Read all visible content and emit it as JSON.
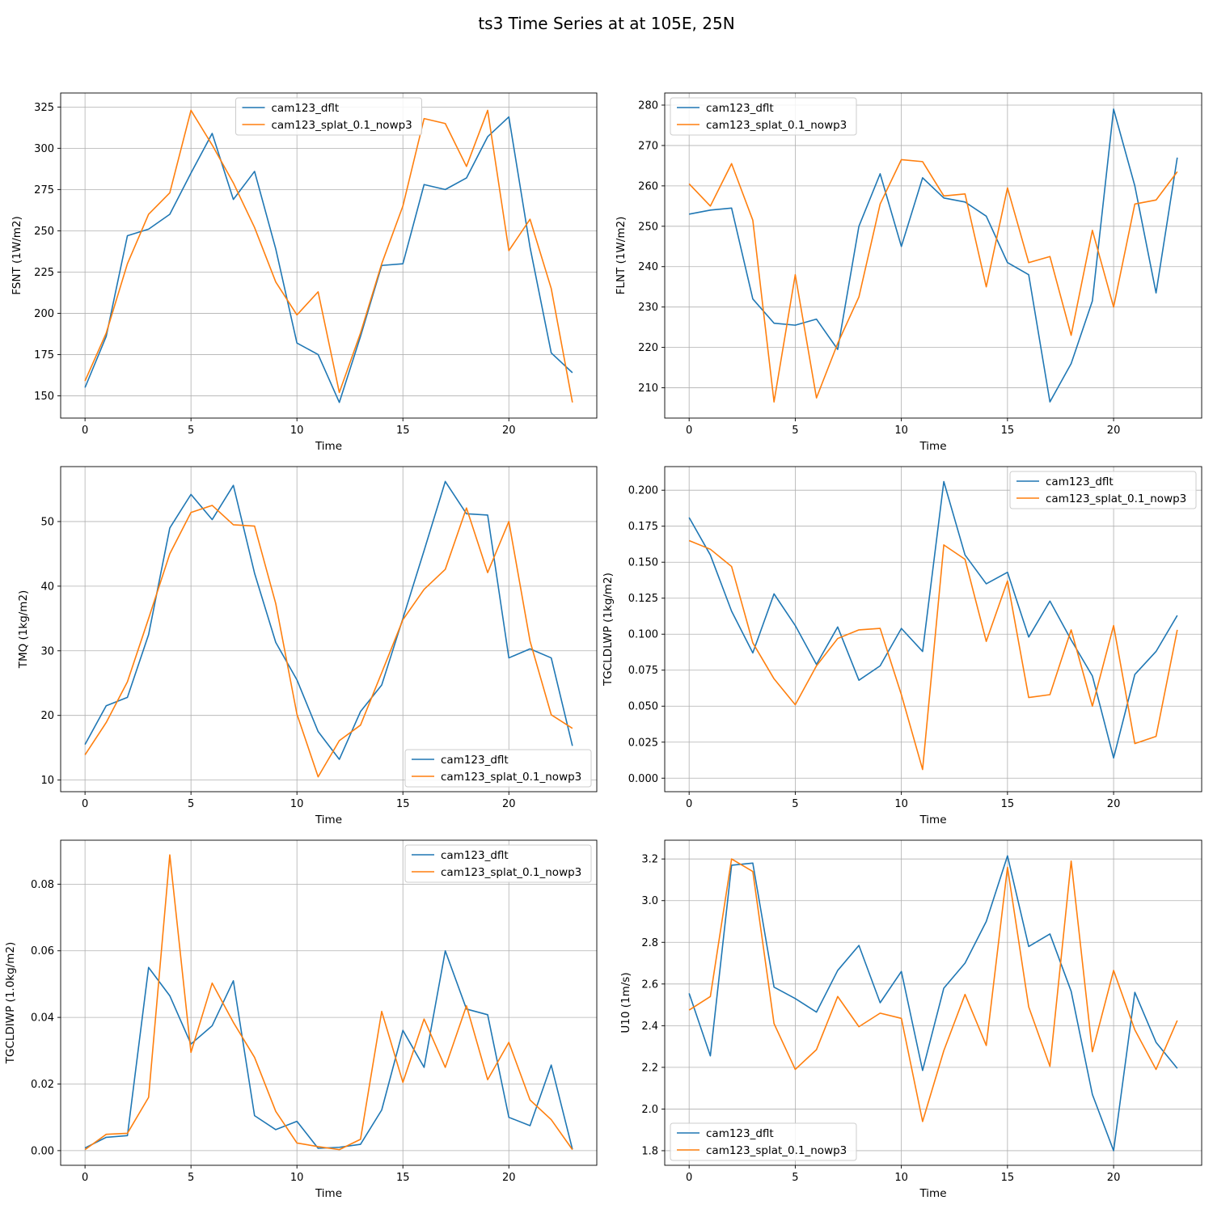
{
  "figure": {
    "title": "ts3 Time Series at at 105E, 25N"
  },
  "colors": {
    "series_0": "#1f77b4",
    "series_1": "#ff7f0e",
    "grid": "#b0b0b0"
  },
  "chart_data": [
    {
      "type": "line",
      "xlabel": "Time",
      "ylabel": "FSNT (1W/m2)",
      "xlim": [
        -1.15,
        24.15
      ],
      "ylim": [
        136.5,
        333.5
      ],
      "xticks": [
        0,
        5,
        10,
        15,
        20
      ],
      "yticks": [
        150,
        175,
        200,
        225,
        250,
        275,
        300,
        325
      ],
      "ytick_labels": [
        "150",
        "175",
        "200",
        "225",
        "250",
        "275",
        "300",
        "325"
      ],
      "legend_loc": "upper center",
      "grid": true,
      "x": [
        0,
        1,
        2,
        3,
        4,
        5,
        6,
        7,
        8,
        9,
        10,
        11,
        12,
        13,
        14,
        15,
        16,
        17,
        18,
        19,
        20,
        21,
        22,
        23
      ],
      "series": [
        {
          "name": "cam123_dflt",
          "values": [
            155,
            186,
            247,
            251,
            260,
            285,
            309,
            269,
            286,
            239,
            182,
            175,
            146,
            186,
            229,
            230,
            278,
            275,
            282,
            307,
            319,
            240,
            176,
            164
          ]
        },
        {
          "name": "cam123_splat_0.1_nowp3",
          "values": [
            159,
            188,
            230,
            260,
            273,
            323,
            302,
            279,
            252,
            219,
            199,
            213,
            152,
            188,
            230,
            265,
            318,
            315,
            289,
            323,
            238,
            257,
            215,
            146
          ]
        }
      ]
    },
    {
      "type": "line",
      "xlabel": "Time",
      "ylabel": "FLNT (1W/m2)",
      "xlim": [
        -1.15,
        24.15
      ],
      "ylim": [
        202.5,
        283.0
      ],
      "xticks": [
        0,
        5,
        10,
        15,
        20
      ],
      "yticks": [
        210,
        220,
        230,
        240,
        250,
        260,
        270,
        280
      ],
      "ytick_labels": [
        "210",
        "220",
        "230",
        "240",
        "250",
        "260",
        "270",
        "280"
      ],
      "legend_loc": "upper left",
      "grid": true,
      "x": [
        0,
        1,
        2,
        3,
        4,
        5,
        6,
        7,
        8,
        9,
        10,
        11,
        12,
        13,
        14,
        15,
        16,
        17,
        18,
        19,
        20,
        21,
        22,
        23
      ],
      "series": [
        {
          "name": "cam123_dflt",
          "values": [
            253,
            254,
            254.5,
            232,
            226,
            225.5,
            227,
            219.5,
            250,
            263,
            245,
            262,
            257,
            256,
            252.5,
            241,
            238,
            206.5,
            216,
            231.5,
            279,
            260,
            233.5,
            267
          ]
        },
        {
          "name": "cam123_splat_0.1_nowp3",
          "values": [
            260.5,
            255,
            265.5,
            251.5,
            206.5,
            238,
            207.5,
            221,
            232.5,
            255.5,
            266.5,
            266,
            257.5,
            258,
            235,
            259.5,
            241,
            242.5,
            223,
            249,
            230,
            255.5,
            256.5,
            263.5
          ]
        }
      ]
    },
    {
      "type": "line",
      "xlabel": "Time",
      "ylabel": "TMQ (1kg/m2)",
      "xlim": [
        -1.15,
        24.15
      ],
      "ylim": [
        8.2,
        58.5
      ],
      "xticks": [
        0,
        5,
        10,
        15,
        20
      ],
      "yticks": [
        10,
        20,
        30,
        40,
        50
      ],
      "ytick_labels": [
        "10",
        "20",
        "30",
        "40",
        "50"
      ],
      "legend_loc": "lower right",
      "grid": true,
      "x": [
        0,
        1,
        2,
        3,
        4,
        5,
        6,
        7,
        8,
        9,
        10,
        11,
        12,
        13,
        14,
        15,
        16,
        17,
        18,
        19,
        20,
        21,
        22,
        23
      ],
      "series": [
        {
          "name": "cam123_dflt",
          "values": [
            15.5,
            21.5,
            22.8,
            32.5,
            49,
            54.2,
            50.3,
            55.6,
            42,
            31.3,
            25.5,
            17.5,
            13.2,
            20.6,
            24.7,
            35,
            45.5,
            56.2,
            51.2,
            51,
            28.9,
            30.3,
            28.9,
            15.3
          ]
        },
        {
          "name": "cam123_splat_0.1_nowp3",
          "values": [
            13.9,
            18.9,
            25.2,
            35,
            45,
            51.4,
            52.5,
            49.5,
            49.3,
            37.3,
            20.2,
            10.5,
            16.1,
            18.5,
            26.6,
            34.8,
            39.5,
            42.6,
            52.1,
            42.1,
            50,
            31.5,
            20.1,
            18
          ]
        }
      ]
    },
    {
      "type": "line",
      "xlabel": "Time",
      "ylabel": "TGCLDLWP (1kg/m2)",
      "xlim": [
        -1.15,
        24.15
      ],
      "ylim": [
        -0.0094,
        0.2164
      ],
      "xticks": [
        0,
        5,
        10,
        15,
        20
      ],
      "yticks": [
        0,
        0.025,
        0.05,
        0.075,
        0.1,
        0.125,
        0.15,
        0.175,
        0.2
      ],
      "ytick_labels": [
        "0.000",
        "0.025",
        "0.050",
        "0.075",
        "0.100",
        "0.125",
        "0.150",
        "0.175",
        "0.200"
      ],
      "legend_loc": "upper right",
      "grid": true,
      "x": [
        0,
        1,
        2,
        3,
        4,
        5,
        6,
        7,
        8,
        9,
        10,
        11,
        12,
        13,
        14,
        15,
        16,
        17,
        18,
        19,
        20,
        21,
        22,
        23
      ],
      "series": [
        {
          "name": "cam123_dflt",
          "values": [
            0.181,
            0.155,
            0.116,
            0.087,
            0.128,
            0.106,
            0.079,
            0.105,
            0.068,
            0.078,
            0.104,
            0.088,
            0.206,
            0.155,
            0.135,
            0.143,
            0.098,
            0.123,
            0.096,
            0.071,
            0.014,
            0.072,
            0.088,
            0.113
          ]
        },
        {
          "name": "cam123_splat_0.1_nowp3",
          "values": [
            0.165,
            0.159,
            0.147,
            0.094,
            0.069,
            0.051,
            0.078,
            0.097,
            0.103,
            0.104,
            0.058,
            0.006,
            0.162,
            0.152,
            0.095,
            0.137,
            0.056,
            0.058,
            0.103,
            0.05,
            0.106,
            0.024,
            0.029,
            0.103
          ]
        }
      ]
    },
    {
      "type": "line",
      "xlabel": "Time",
      "ylabel": "TGCLDIWP (1.0kg/m2)",
      "xlim": [
        -1.15,
        24.15
      ],
      "ylim": [
        -0.0044,
        0.0932
      ],
      "xticks": [
        0,
        5,
        10,
        15,
        20
      ],
      "yticks": [
        0,
        0.02,
        0.04,
        0.06,
        0.08
      ],
      "ytick_labels": [
        "0.00",
        "0.02",
        "0.04",
        "0.06",
        "0.08"
      ],
      "legend_loc": "upper right",
      "grid": true,
      "x": [
        0,
        1,
        2,
        3,
        4,
        5,
        6,
        7,
        8,
        9,
        10,
        11,
        12,
        13,
        14,
        15,
        16,
        17,
        18,
        19,
        20,
        21,
        22,
        23
      ],
      "series": [
        {
          "name": "cam123_dflt",
          "values": [
            0.0008,
            0.004,
            0.0045,
            0.055,
            0.0465,
            0.032,
            0.0375,
            0.051,
            0.0105,
            0.0063,
            0.0088,
            0.0007,
            0.001,
            0.0019,
            0.0122,
            0.0361,
            0.025,
            0.06,
            0.0425,
            0.0408,
            0.01,
            0.0075,
            0.0257,
            0.0004
          ]
        },
        {
          "name": "cam123_splat_0.1_nowp3",
          "values": [
            0.0003,
            0.0049,
            0.0052,
            0.016,
            0.0888,
            0.0295,
            0.0503,
            0.0385,
            0.028,
            0.0118,
            0.0023,
            0.0012,
            0.0003,
            0.0034,
            0.0418,
            0.0205,
            0.0395,
            0.025,
            0.0435,
            0.0213,
            0.0325,
            0.0152,
            0.0093,
            0.0003
          ]
        }
      ]
    },
    {
      "type": "line",
      "xlabel": "Time",
      "ylabel": "U10 (1m/s)",
      "xlim": [
        -1.15,
        24.15
      ],
      "ylim": [
        1.73,
        3.29
      ],
      "xticks": [
        0,
        5,
        10,
        15,
        20
      ],
      "yticks": [
        1.8,
        2.0,
        2.2,
        2.4,
        2.6,
        2.8,
        3.0,
        3.2
      ],
      "ytick_labels": [
        "1.8",
        "2.0",
        "2.2",
        "2.4",
        "2.6",
        "2.8",
        "3.0",
        "3.2"
      ],
      "legend_loc": "lower left",
      "grid": true,
      "x": [
        0,
        1,
        2,
        3,
        4,
        5,
        6,
        7,
        8,
        9,
        10,
        11,
        12,
        13,
        14,
        15,
        16,
        17,
        18,
        19,
        20,
        21,
        22,
        23
      ],
      "series": [
        {
          "name": "cam123_dflt",
          "values": [
            2.555,
            2.255,
            3.17,
            3.18,
            2.585,
            2.53,
            2.465,
            2.665,
            2.785,
            2.51,
            2.66,
            2.185,
            2.58,
            2.7,
            2.9,
            3.215,
            2.78,
            2.84,
            2.565,
            2.07,
            1.8,
            2.56,
            2.32,
            2.195
          ]
        },
        {
          "name": "cam123_splat_0.1_nowp3",
          "values": [
            2.475,
            2.54,
            3.2,
            3.14,
            2.41,
            2.19,
            2.285,
            2.54,
            2.395,
            2.46,
            2.435,
            1.94,
            2.28,
            2.55,
            2.305,
            3.16,
            2.49,
            2.205,
            3.19,
            2.275,
            2.665,
            2.38,
            2.19,
            2.425
          ]
        }
      ]
    }
  ]
}
